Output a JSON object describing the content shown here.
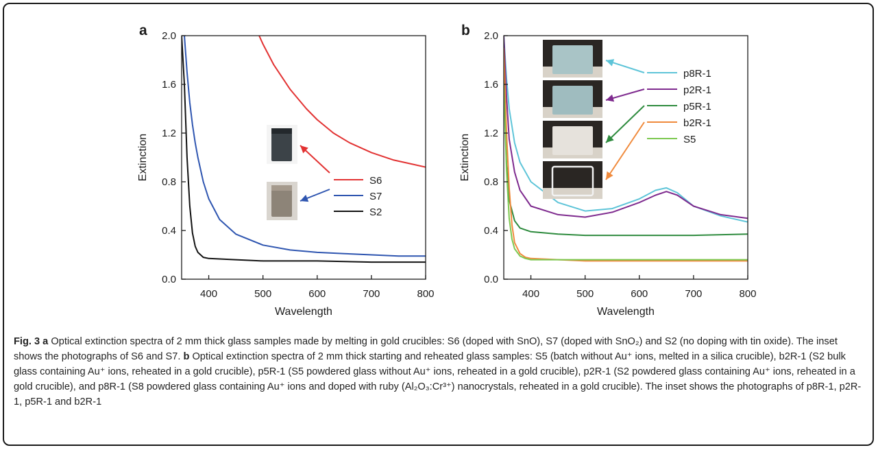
{
  "colors": {
    "S6": "#e23232",
    "S7": "#2e55b0",
    "S2": "#111111",
    "p8R-1": "#5dc4d8",
    "p2R-1": "#7e2a8e",
    "p5R-1": "#2e8b3e",
    "b2R-1": "#f08a3c",
    "S5": "#7cc850"
  },
  "inset_a": [
    {
      "photo": "dark-glass-cube",
      "color": "#3c4348",
      "points_to": "S6"
    },
    {
      "photo": "grey-glass-cube",
      "color": "#8d8478",
      "points_to": "S7"
    }
  ],
  "inset_b": [
    {
      "photo": "blue-glass-block",
      "color": "#a9c4c6",
      "points_to": "p8R-1"
    },
    {
      "photo": "blue-glass-block",
      "color": "#9fbcbf",
      "points_to": "p2R-1"
    },
    {
      "photo": "white-glass-block",
      "color": "#e6e2dc",
      "points_to": "p5R-1"
    },
    {
      "photo": "clear-glass-block",
      "color": "#eeeeee",
      "points_to": "b2R-1"
    }
  ],
  "chart_data": [
    {
      "panel_label": "a",
      "type": "line",
      "xlabel": "Wavelength",
      "ylabel": "Extinction",
      "xlim": [
        350,
        800
      ],
      "ylim": [
        0.0,
        2.0
      ],
      "xticks": [
        "400",
        "500",
        "600",
        "700",
        "800"
      ],
      "yticks": [
        "0.0",
        "0.4",
        "0.8",
        "1.2",
        "1.6",
        "2.0"
      ],
      "legend_position": "right",
      "series": [
        {
          "name": "S6",
          "x": [
            493,
            500,
            520,
            550,
            580,
            600,
            630,
            660,
            700,
            740,
            770,
            800
          ],
          "y": [
            2.0,
            1.93,
            1.76,
            1.56,
            1.4,
            1.31,
            1.2,
            1.12,
            1.04,
            0.98,
            0.95,
            0.92
          ]
        },
        {
          "name": "S7",
          "x": [
            355,
            360,
            365,
            370,
            375,
            380,
            390,
            400,
            420,
            450,
            500,
            550,
            600,
            650,
            700,
            750,
            800
          ],
          "y": [
            2.0,
            1.7,
            1.45,
            1.27,
            1.12,
            1.0,
            0.8,
            0.66,
            0.49,
            0.37,
            0.28,
            0.24,
            0.22,
            0.21,
            0.2,
            0.19,
            0.19
          ]
        },
        {
          "name": "S2",
          "x": [
            350,
            355,
            360,
            365,
            370,
            375,
            380,
            390,
            400,
            450,
            500,
            600,
            700,
            800
          ],
          "y": [
            2.0,
            1.6,
            1.0,
            0.6,
            0.38,
            0.27,
            0.22,
            0.18,
            0.17,
            0.16,
            0.15,
            0.15,
            0.14,
            0.14
          ]
        }
      ]
    },
    {
      "panel_label": "b",
      "type": "line",
      "xlabel": "Wavelength",
      "ylabel": "Extinction",
      "xlim": [
        350,
        800
      ],
      "ylim": [
        0.0,
        2.0
      ],
      "xticks": [
        "400",
        "500",
        "600",
        "700",
        "800"
      ],
      "yticks": [
        "0.0",
        "0.4",
        "0.8",
        "1.2",
        "1.6",
        "2.0"
      ],
      "legend_position": "top-right",
      "series": [
        {
          "name": "p8R-1",
          "x": [
            350,
            355,
            360,
            370,
            380,
            400,
            450,
            500,
            550,
            600,
            630,
            650,
            670,
            700,
            750,
            800
          ],
          "y": [
            2.0,
            1.65,
            1.4,
            1.12,
            0.96,
            0.8,
            0.63,
            0.56,
            0.58,
            0.66,
            0.73,
            0.75,
            0.71,
            0.6,
            0.52,
            0.47
          ]
        },
        {
          "name": "p2R-1",
          "x": [
            350,
            355,
            360,
            370,
            380,
            400,
            450,
            500,
            550,
            600,
            630,
            650,
            670,
            700,
            750,
            800
          ],
          "y": [
            2.0,
            1.5,
            1.15,
            0.88,
            0.73,
            0.6,
            0.53,
            0.51,
            0.55,
            0.63,
            0.69,
            0.72,
            0.69,
            0.6,
            0.53,
            0.5
          ]
        },
        {
          "name": "p5R-1",
          "x": [
            350,
            355,
            360,
            370,
            380,
            400,
            450,
            500,
            600,
            700,
            800
          ],
          "y": [
            1.8,
            0.95,
            0.65,
            0.48,
            0.42,
            0.39,
            0.37,
            0.36,
            0.36,
            0.36,
            0.37
          ]
        },
        {
          "name": "b2R-1",
          "x": [
            350,
            355,
            360,
            365,
            370,
            380,
            390,
            400,
            500,
            600,
            700,
            800
          ],
          "y": [
            1.9,
            1.2,
            0.75,
            0.45,
            0.3,
            0.21,
            0.18,
            0.17,
            0.15,
            0.15,
            0.15,
            0.15
          ]
        },
        {
          "name": "S5",
          "x": [
            350,
            355,
            360,
            365,
            370,
            380,
            390,
            400,
            500,
            600,
            700,
            800
          ],
          "y": [
            1.6,
            0.9,
            0.5,
            0.33,
            0.25,
            0.19,
            0.17,
            0.16,
            0.16,
            0.16,
            0.16,
            0.16
          ]
        }
      ]
    }
  ],
  "caption": {
    "fig_label": "Fig. 3",
    "a_label": "a",
    "a_text": "Optical extinction spectra of 2 mm thick glass samples made by melting in gold crucibles: S6 (doped with SnO), S7 (doped with SnO₂) and S2 (no doping with tin oxide). The inset shows the photographs of S6 and S7.",
    "b_label": "b",
    "b_text": "Optical extinction spectra of 2 mm thick starting and reheated glass samples: S5 (batch without Au⁺ ions, melted in a silica crucible), b2R-1 (S2 bulk glass containing Au⁺ ions, reheated in a gold crucible), p5R-1 (S5 powdered glass without Au⁺ ions, reheated in a gold crucible), p2R-1 (S2 powdered glass containing Au⁺ ions, reheated in a gold crucible), and p8R-1 (S8 powdered glass containing Au⁺ ions and doped with ruby (Al₂O₃:Cr³⁺) nanocrystals, reheated in a gold crucible). The inset shows the photographs of p8R-1, p2R-1, p5R-1 and b2R-1"
  }
}
